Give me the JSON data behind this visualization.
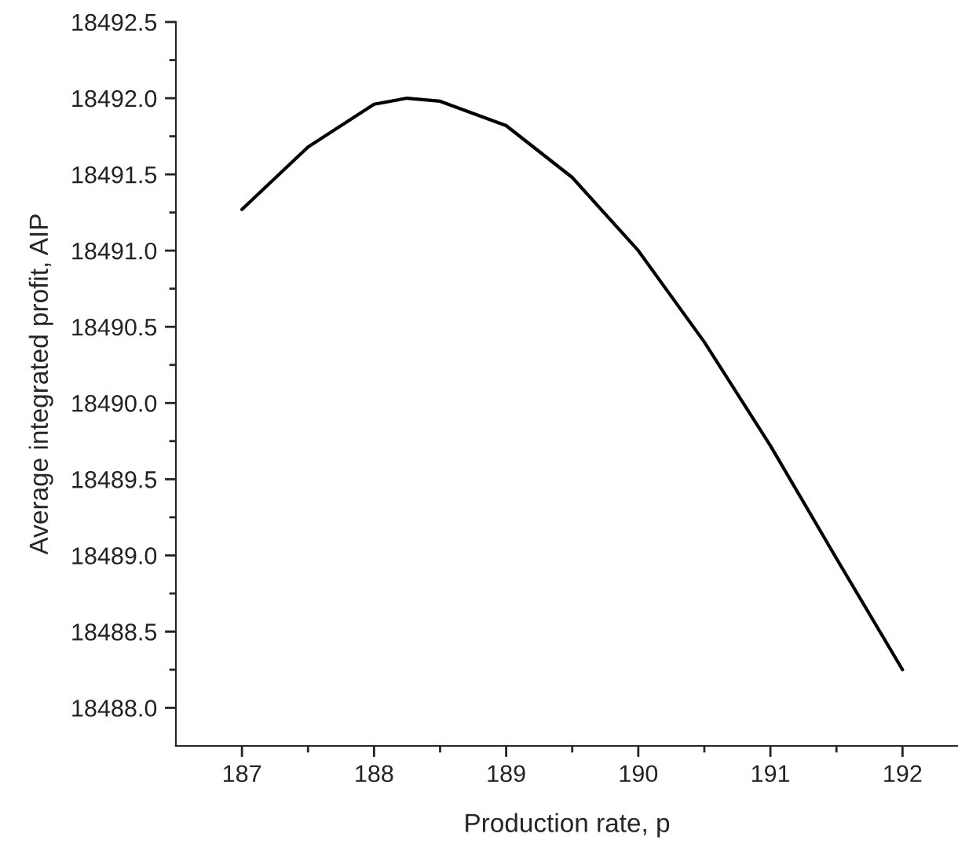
{
  "chart_data": {
    "type": "line",
    "xlabel": "Production rate, p",
    "ylabel": "Average integrated profit, AIP",
    "x": [
      187.0,
      187.5,
      188.0,
      188.25,
      188.5,
      189.0,
      189.5,
      190.0,
      190.5,
      191.0,
      191.5,
      192.0
    ],
    "series": [
      {
        "color": "#000000",
        "values": [
          18491.27,
          18491.68,
          18491.96,
          18492.0,
          18491.98,
          18491.82,
          18491.48,
          18491.0,
          18490.4,
          18489.72,
          18488.98,
          18488.25
        ]
      }
    ],
    "xlim": [
      186.5,
      192.42
    ],
    "ylim": [
      18487.75,
      18492.5
    ],
    "xticks": [
      187,
      {
        "value": 187.5,
        "label": null
      },
      188,
      {
        "value": 188.5,
        "label": null
      },
      189,
      {
        "value": 189.5,
        "label": null
      },
      190,
      {
        "value": 190.5,
        "label": null
      },
      191,
      {
        "value": 191.5,
        "label": null
      },
      192
    ],
    "yticks": [
      {
        "value": 18488.0,
        "label": "18488.0"
      },
      {
        "value": 18488.25,
        "label": null
      },
      18488.5,
      {
        "value": 18488.75,
        "label": null
      },
      {
        "value": 18489.0,
        "label": "18489.0"
      },
      {
        "value": 18489.25,
        "label": null
      },
      18489.5,
      {
        "value": 18489.75,
        "label": null
      },
      {
        "value": 18490.0,
        "label": "18490.0"
      },
      {
        "value": 18490.25,
        "label": null
      },
      18490.5,
      {
        "value": 18490.75,
        "label": null
      },
      {
        "value": 18491.0,
        "label": "18491.0"
      },
      {
        "value": 18491.25,
        "label": null
      },
      18491.5,
      {
        "value": 18491.75,
        "label": null
      },
      {
        "value": 18492.0,
        "label": "18492.0"
      },
      {
        "value": 18492.25,
        "label": null
      },
      18492.5
    ],
    "grid": false,
    "legend": false,
    "marker": "none",
    "line_style": "solid"
  }
}
